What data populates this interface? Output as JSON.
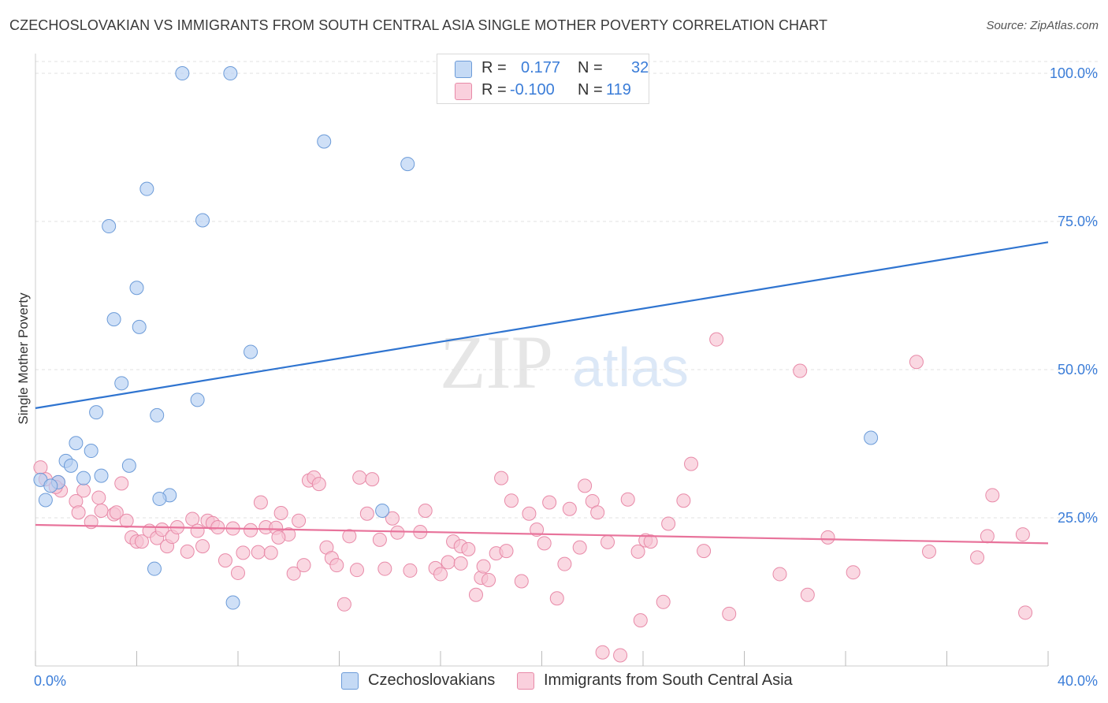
{
  "header": {
    "title": "CZECHOSLOVAKIAN VS IMMIGRANTS FROM SOUTH CENTRAL ASIA SINGLE MOTHER POVERTY CORRELATION CHART",
    "source": "Source: ZipAtlas.com"
  },
  "watermark": {
    "zip": "ZIP",
    "atlas": "atlas"
  },
  "stats_legend": [
    {
      "r_label": "R =",
      "r_value": "0.177",
      "n_label": "N =",
      "n_value": "32",
      "color": "#aac8f0"
    },
    {
      "r_label": "R =",
      "r_value": "-0.100",
      "n_label": "N =",
      "n_value": "119",
      "color": "#f5b8cb"
    }
  ],
  "colors": {
    "blue_fill": "#b5cff2",
    "blue_stroke": "#6c9bd8",
    "blue_line": "#2f74d0",
    "pink_fill": "#f7c3d3",
    "pink_stroke": "#e88aa8",
    "pink_line": "#e8739b",
    "tick_label": "#3b7dd8",
    "grid": "#e0e0e0"
  },
  "chart_data": {
    "type": "scatter",
    "title": "CZECHOSLOVAKIAN VS IMMIGRANTS FROM SOUTH CENTRAL ASIA SINGLE MOTHER POVERTY CORRELATION CHART",
    "xlabel": "",
    "ylabel": "Single Mother Poverty",
    "xlim": [
      0,
      40
    ],
    "ylim": [
      0,
      102
    ],
    "x_tick_labels": [
      "0.0%",
      "40.0%"
    ],
    "y_tick_values": [
      25,
      50,
      75,
      100
    ],
    "y_tick_labels": [
      "25.0%",
      "50.0%",
      "75.0%",
      "100.0%"
    ],
    "grid": true,
    "legend_position": "bottom",
    "series": [
      {
        "name": "Czechoslovakians",
        "trendline": {
          "x": [
            0,
            40
          ],
          "y": [
            43.5,
            71.5
          ]
        },
        "points": [
          [
            5.8,
            100
          ],
          [
            7.7,
            100
          ],
          [
            11.4,
            88.5
          ],
          [
            14.7,
            84.7
          ],
          [
            4.4,
            80.5
          ],
          [
            6.6,
            75.2
          ],
          [
            2.9,
            74.2
          ],
          [
            4.0,
            63.8
          ],
          [
            3.1,
            58.5
          ],
          [
            4.1,
            57.2
          ],
          [
            8.5,
            53.0
          ],
          [
            3.4,
            47.7
          ],
          [
            6.4,
            44.9
          ],
          [
            2.4,
            42.8
          ],
          [
            4.8,
            42.3
          ],
          [
            33.0,
            38.5
          ],
          [
            1.6,
            37.6
          ],
          [
            2.2,
            36.3
          ],
          [
            1.2,
            34.6
          ],
          [
            3.7,
            33.8
          ],
          [
            1.4,
            33.8
          ],
          [
            2.6,
            32.1
          ],
          [
            1.9,
            31.7
          ],
          [
            0.2,
            31.4
          ],
          [
            0.9,
            31.0
          ],
          [
            0.6,
            30.4
          ],
          [
            5.3,
            28.8
          ],
          [
            4.9,
            28.2
          ],
          [
            0.4,
            28.0
          ],
          [
            13.7,
            26.2
          ],
          [
            4.7,
            16.4
          ],
          [
            7.8,
            10.7
          ]
        ]
      },
      {
        "name": "Immigrants from South Central Asia",
        "trendline": {
          "x": [
            0,
            40
          ],
          "y": [
            23.8,
            20.7
          ]
        },
        "points": [
          [
            0.2,
            33.5
          ],
          [
            0.4,
            31.5
          ],
          [
            0.9,
            31.0
          ],
          [
            1.0,
            29.6
          ],
          [
            1.9,
            29.6
          ],
          [
            0.8,
            30.2
          ],
          [
            2.5,
            28.4
          ],
          [
            1.6,
            27.8
          ],
          [
            1.7,
            25.9
          ],
          [
            2.2,
            24.3
          ],
          [
            2.6,
            26.2
          ],
          [
            3.1,
            25.6
          ],
          [
            3.2,
            25.9
          ],
          [
            3.4,
            30.8
          ],
          [
            3.6,
            24.5
          ],
          [
            3.8,
            21.7
          ],
          [
            4.0,
            21.0
          ],
          [
            4.2,
            21.0
          ],
          [
            4.5,
            22.8
          ],
          [
            4.8,
            21.6
          ],
          [
            5.0,
            23.0
          ],
          [
            5.2,
            20.2
          ],
          [
            5.4,
            21.8
          ],
          [
            5.6,
            23.4
          ],
          [
            6.0,
            19.3
          ],
          [
            6.2,
            24.8
          ],
          [
            6.4,
            22.8
          ],
          [
            6.6,
            20.2
          ],
          [
            6.8,
            24.5
          ],
          [
            7.0,
            24.1
          ],
          [
            7.2,
            23.4
          ],
          [
            7.5,
            17.8
          ],
          [
            7.8,
            23.2
          ],
          [
            8.0,
            15.7
          ],
          [
            8.2,
            19.1
          ],
          [
            8.5,
            22.9
          ],
          [
            8.8,
            19.2
          ],
          [
            8.9,
            27.6
          ],
          [
            9.1,
            23.4
          ],
          [
            9.3,
            19.1
          ],
          [
            9.5,
            23.3
          ],
          [
            9.7,
            25.8
          ],
          [
            10.0,
            22.2
          ],
          [
            10.2,
            15.6
          ],
          [
            10.4,
            24.5
          ],
          [
            10.8,
            31.3
          ],
          [
            11.0,
            31.8
          ],
          [
            11.2,
            30.7
          ],
          [
            11.5,
            20.0
          ],
          [
            11.7,
            18.2
          ],
          [
            11.9,
            17.0
          ],
          [
            12.2,
            10.4
          ],
          [
            12.4,
            21.9
          ],
          [
            12.7,
            16.2
          ],
          [
            12.8,
            31.8
          ],
          [
            13.1,
            25.7
          ],
          [
            13.3,
            31.5
          ],
          [
            13.6,
            21.3
          ],
          [
            13.8,
            16.4
          ],
          [
            14.1,
            24.9
          ],
          [
            14.3,
            22.5
          ],
          [
            14.8,
            16.1
          ],
          [
            15.2,
            22.6
          ],
          [
            15.4,
            26.2
          ],
          [
            15.8,
            16.5
          ],
          [
            16.0,
            15.5
          ],
          [
            16.3,
            17.5
          ],
          [
            16.5,
            21.0
          ],
          [
            16.8,
            20.2
          ],
          [
            17.1,
            19.7
          ],
          [
            17.4,
            12.0
          ],
          [
            17.6,
            14.9
          ],
          [
            17.9,
            14.5
          ],
          [
            18.2,
            19.0
          ],
          [
            18.4,
            31.7
          ],
          [
            18.6,
            19.4
          ],
          [
            18.8,
            27.9
          ],
          [
            19.2,
            14.3
          ],
          [
            19.5,
            25.7
          ],
          [
            19.8,
            23.0
          ],
          [
            20.1,
            20.7
          ],
          [
            20.3,
            27.6
          ],
          [
            20.6,
            11.4
          ],
          [
            20.9,
            17.2
          ],
          [
            21.1,
            26.5
          ],
          [
            21.5,
            20.0
          ],
          [
            21.7,
            30.4
          ],
          [
            22.0,
            27.8
          ],
          [
            22.2,
            25.9
          ],
          [
            22.4,
            2.3
          ],
          [
            22.6,
            20.9
          ],
          [
            23.1,
            1.8
          ],
          [
            23.4,
            28.1
          ],
          [
            23.8,
            19.3
          ],
          [
            24.1,
            21.2
          ],
          [
            24.3,
            21.0
          ],
          [
            24.8,
            10.8
          ],
          [
            25.0,
            24.0
          ],
          [
            25.6,
            27.9
          ],
          [
            25.9,
            34.1
          ],
          [
            26.4,
            19.4
          ],
          [
            26.9,
            55.1
          ],
          [
            27.4,
            8.8
          ],
          [
            29.4,
            15.5
          ],
          [
            30.2,
            49.8
          ],
          [
            30.5,
            12.0
          ],
          [
            31.3,
            21.7
          ],
          [
            32.3,
            15.8
          ],
          [
            34.8,
            51.3
          ],
          [
            35.3,
            19.3
          ],
          [
            37.2,
            18.3
          ],
          [
            37.6,
            21.9
          ],
          [
            37.8,
            28.8
          ],
          [
            39.0,
            22.2
          ],
          [
            39.1,
            9.0
          ],
          [
            16.8,
            17.3
          ],
          [
            17.7,
            16.8
          ],
          [
            23.9,
            7.7
          ],
          [
            9.6,
            21.7
          ],
          [
            10.6,
            17.0
          ]
        ]
      }
    ]
  }
}
